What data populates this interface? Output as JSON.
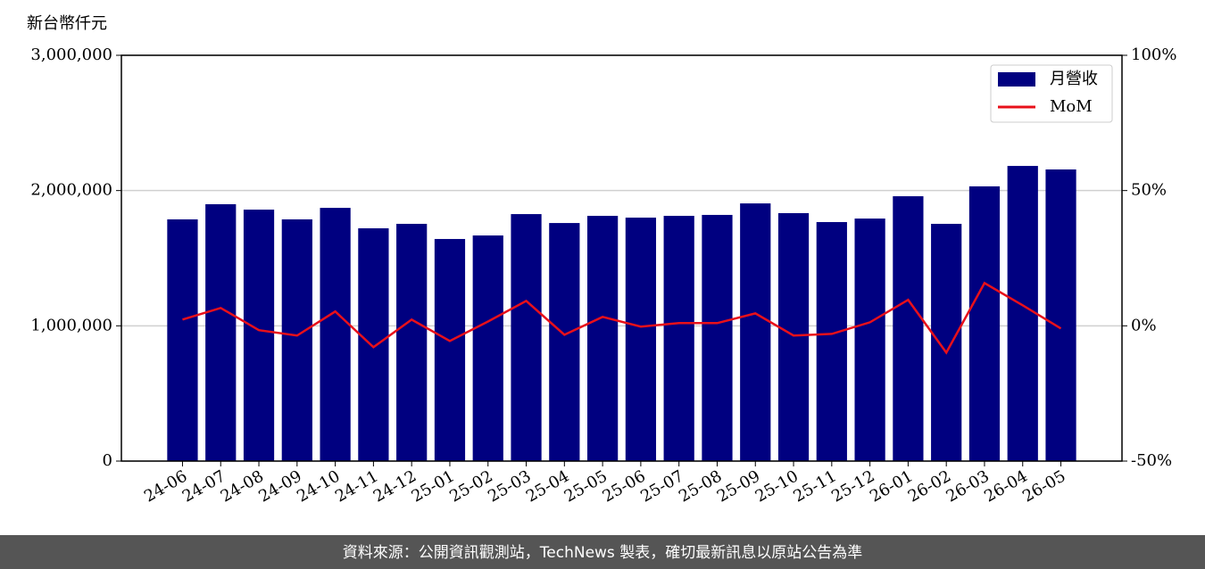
{
  "chart_data": {
    "type": "bar_line",
    "y_label": "新台幣仟元",
    "categories": [
      "24-06",
      "24-07",
      "24-08",
      "24-09",
      "24-10",
      "24-11",
      "24-12",
      "25-01",
      "25-02",
      "25-03",
      "25-04",
      "25-05",
      "25-06",
      "25-07",
      "25-08",
      "25-09",
      "25-10",
      "25-11",
      "25-12",
      "26-01",
      "26-02",
      "26-03",
      "26-04",
      "26-05"
    ],
    "series": [
      {
        "name": "月營收",
        "color": "#000080",
        "type": "bar",
        "values": [
          1787000,
          1899000,
          1859000,
          1787000,
          1872000,
          1721000,
          1754000,
          1642000,
          1668000,
          1826000,
          1760000,
          1813000,
          1800000,
          1813000,
          1820000,
          1905000,
          1833000,
          1767000,
          1793000,
          1958000,
          1754000,
          2031000,
          2182000,
          2156000
        ]
      },
      {
        "name": "MoM",
        "color": "#e8101a",
        "type": "line",
        "axis": "y2",
        "values": [
          2.3,
          6.6,
          -1.6,
          -3.6,
          5.3,
          -7.9,
          2.3,
          -5.6,
          1.6,
          9.2,
          -3.3,
          3.3,
          -0.3,
          1.0,
          1.0,
          4.6,
          -3.6,
          -3.0,
          1.3,
          9.6,
          -9.9,
          15.8,
          7.6,
          -1.0
        ]
      }
    ],
    "ylim": [
      0,
      3000000
    ],
    "yticks": [
      0,
      {
        "value": 1000000,
        "label": "1,000,000"
      },
      {
        "value": 2000000,
        "label": "2,000,000"
      },
      {
        "value": 3000000,
        "label": "3,000,000"
      }
    ],
    "y2lim": [
      -50,
      100
    ],
    "y2ticks": [
      {
        "value": -50,
        "label": "-50%"
      },
      {
        "value": 0,
        "label": "0%"
      },
      {
        "value": 50,
        "label": "50%"
      },
      {
        "value": 100,
        "label": "100%"
      }
    ],
    "grid": true,
    "legend": "upper right",
    "source": "資料來源：公開資訊觀測站，TechNews 製表，確切最新訊息以原站公告為準"
  }
}
